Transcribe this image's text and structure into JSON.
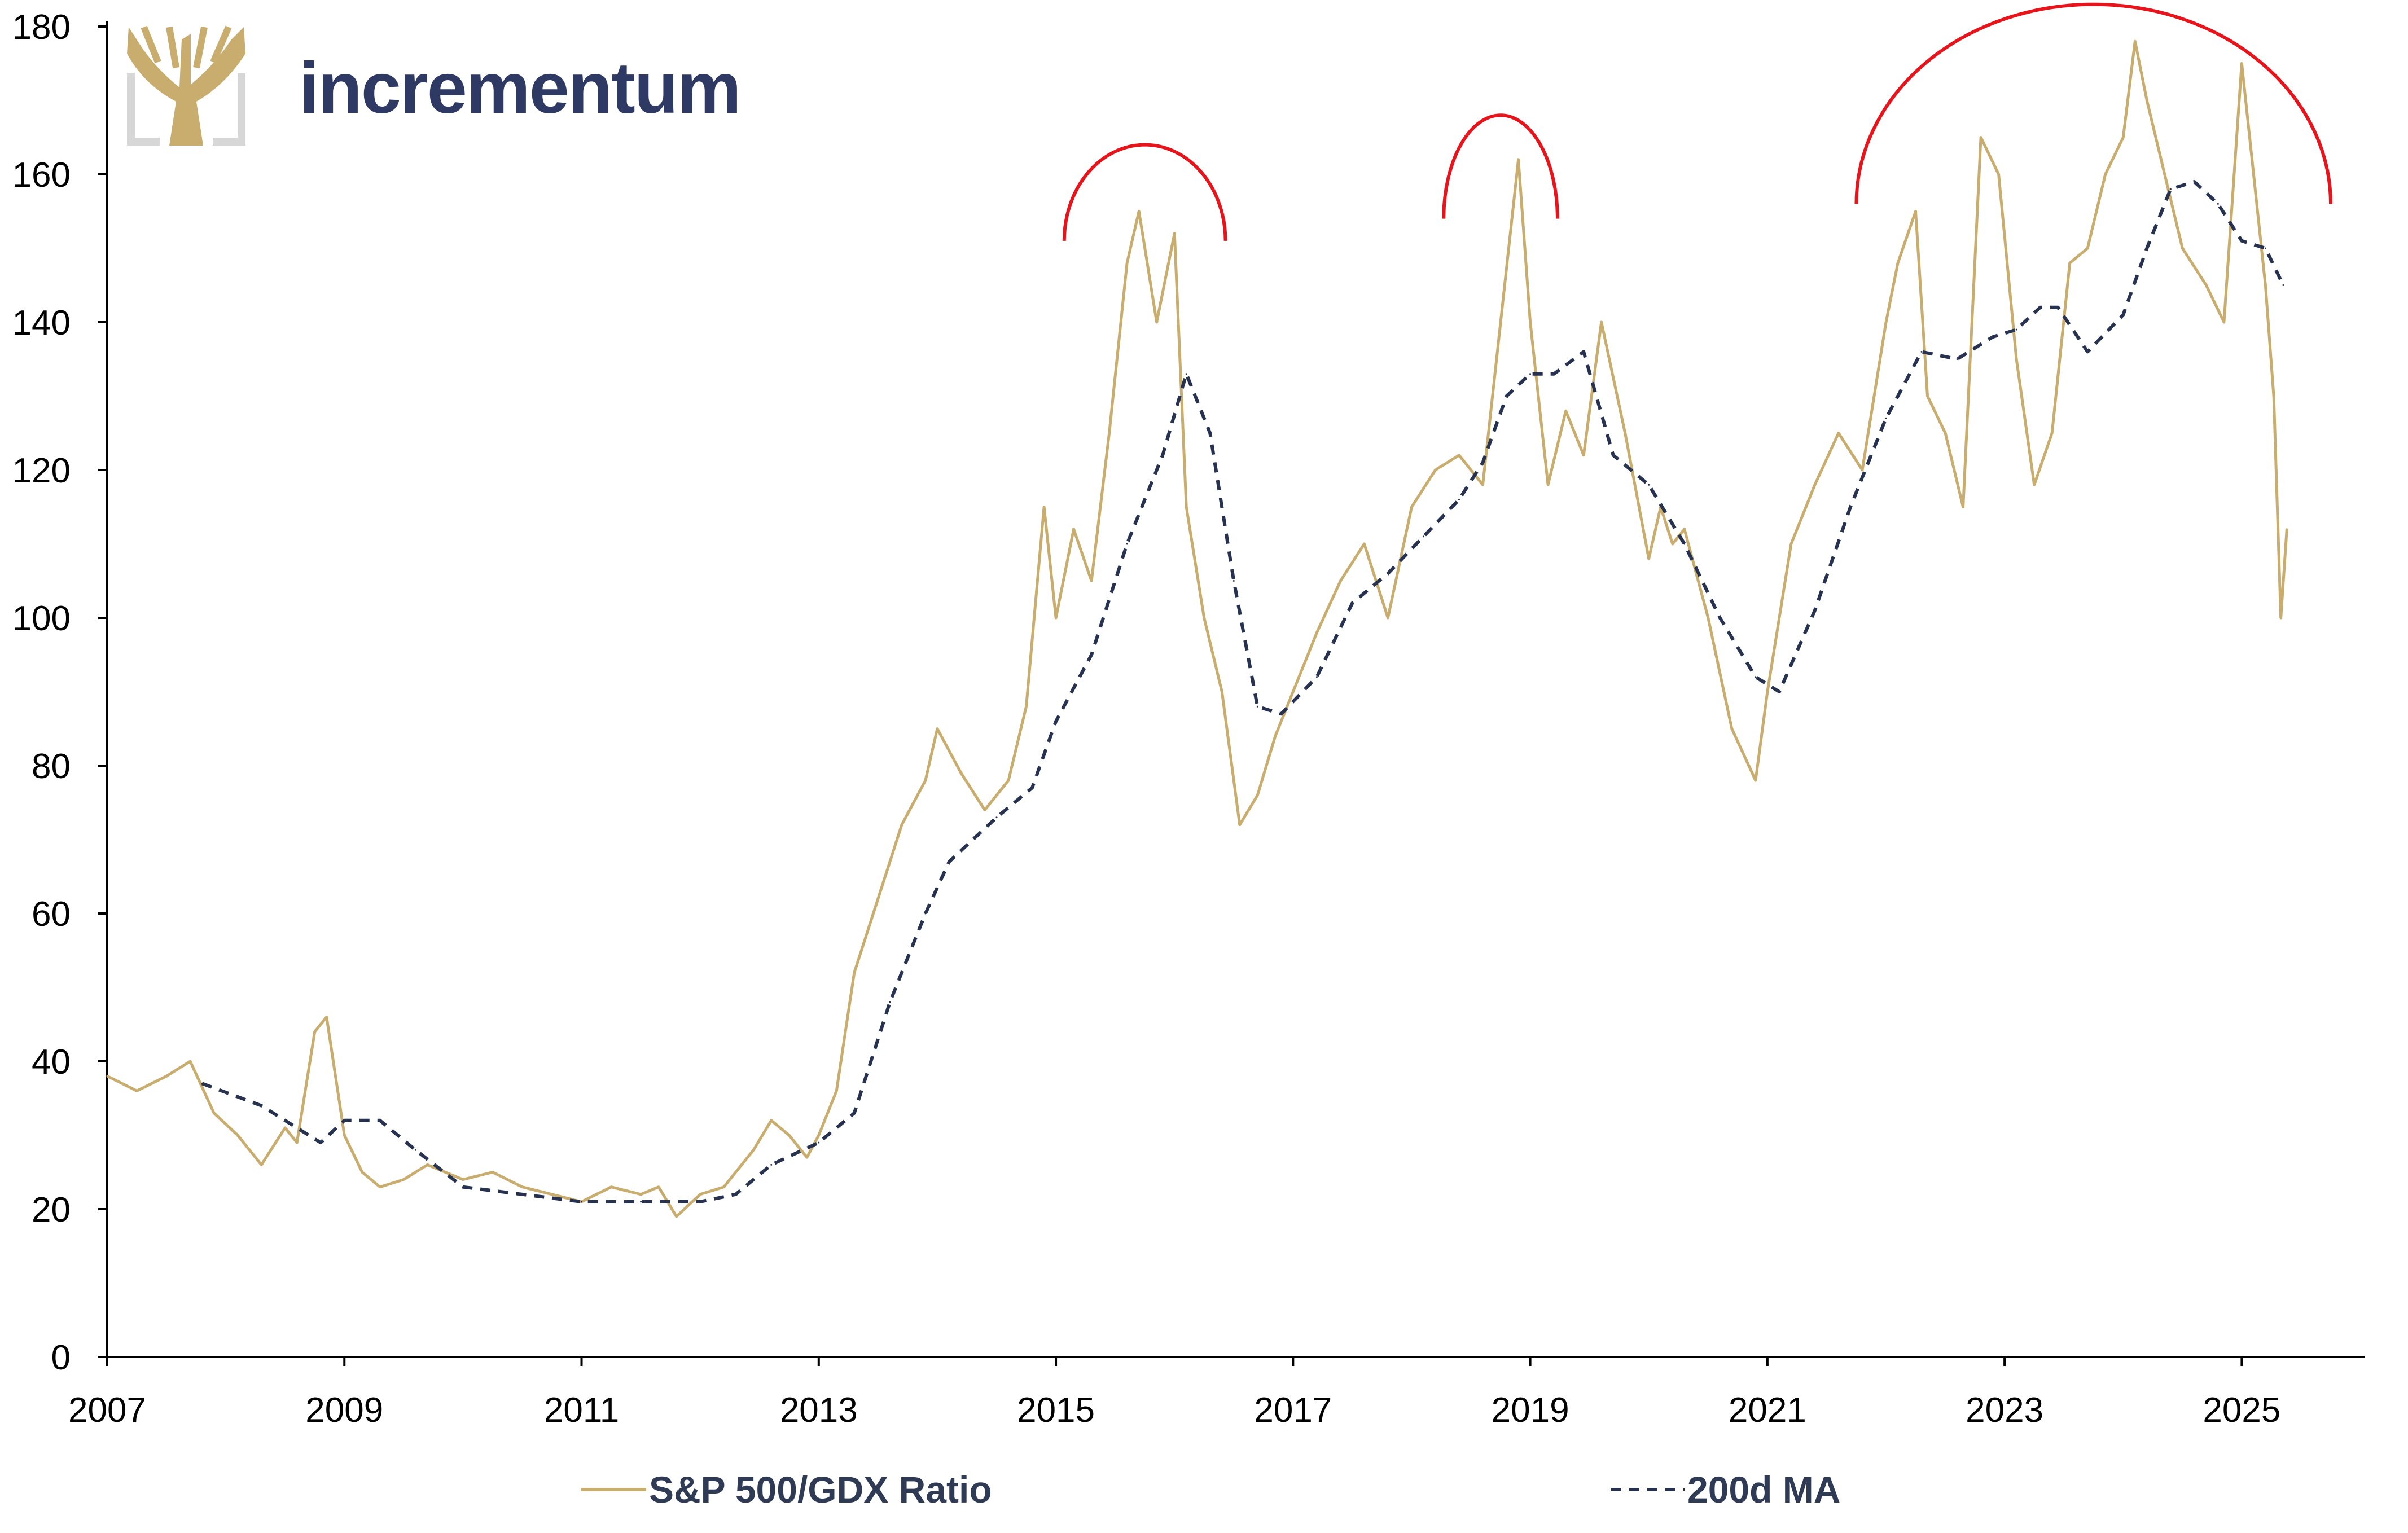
{
  "brand": {
    "name": "incrementum"
  },
  "colors": {
    "ratio": "#c9ad6e",
    "ma": "#26324f",
    "highlight": "#e8141b",
    "brand_text": "#2e3a63",
    "brand_gold": "#c9ad6e",
    "brand_gray": "#d7d7d7",
    "axis": "#000000"
  },
  "chart_data": {
    "type": "line",
    "title": "",
    "xlabel": "",
    "ylabel": "",
    "xlim": [
      2007,
      2025.75
    ],
    "ylim": [
      0,
      180
    ],
    "x_ticks": [
      "2007",
      "2009",
      "2011",
      "2013",
      "2015",
      "2017",
      "2019",
      "2021",
      "2023",
      "2025"
    ],
    "y_ticks": [
      "0",
      "20",
      "40",
      "60",
      "80",
      "100",
      "120",
      "140",
      "160",
      "180"
    ],
    "grid": false,
    "legend": {
      "position": "bottom",
      "entries": [
        "S&P 500/GDX Ratio",
        "200d MA"
      ]
    },
    "series": [
      {
        "name": "S&P 500/GDX Ratio",
        "style": "solid",
        "x": [
          2007.0,
          2007.25,
          2007.5,
          2007.7,
          2007.9,
          2008.1,
          2008.3,
          2008.5,
          2008.6,
          2008.75,
          2008.85,
          2009.0,
          2009.15,
          2009.3,
          2009.5,
          2009.7,
          2010.0,
          2010.25,
          2010.5,
          2010.75,
          2011.0,
          2011.25,
          2011.5,
          2011.65,
          2011.8,
          2012.0,
          2012.2,
          2012.45,
          2012.6,
          2012.75,
          2012.9,
          2013.0,
          2013.15,
          2013.3,
          2013.5,
          2013.7,
          2013.9,
          2014.0,
          2014.2,
          2014.4,
          2014.6,
          2014.75,
          2014.9,
          2015.0,
          2015.15,
          2015.3,
          2015.45,
          2015.6,
          2015.7,
          2015.85,
          2016.0,
          2016.1,
          2016.25,
          2016.4,
          2016.55,
          2016.7,
          2016.85,
          2017.0,
          2017.2,
          2017.4,
          2017.6,
          2017.8,
          2018.0,
          2018.2,
          2018.4,
          2018.6,
          2018.75,
          2018.9,
          2019.0,
          2019.15,
          2019.3,
          2019.45,
          2019.6,
          2019.8,
          2020.0,
          2020.1,
          2020.2,
          2020.3,
          2020.5,
          2020.7,
          2020.9,
          2021.0,
          2021.2,
          2021.4,
          2021.6,
          2021.8,
          2022.0,
          2022.1,
          2022.25,
          2022.35,
          2022.5,
          2022.65,
          2022.8,
          2022.95,
          2023.1,
          2023.25,
          2023.4,
          2023.55,
          2023.7,
          2023.85,
          2024.0,
          2024.1,
          2024.2,
          2024.35,
          2024.5,
          2024.7,
          2024.85,
          2025.0,
          2025.1,
          2025.2,
          2025.27,
          2025.33,
          2025.38
        ],
        "values": [
          38,
          36,
          38,
          40,
          33,
          30,
          26,
          31,
          29,
          44,
          46,
          30,
          25,
          23,
          24,
          26,
          24,
          25,
          23,
          22,
          21,
          23,
          22,
          23,
          19,
          22,
          23,
          28,
          32,
          30,
          27,
          30,
          36,
          52,
          62,
          72,
          78,
          85,
          79,
          74,
          78,
          88,
          115,
          100,
          112,
          105,
          125,
          148,
          155,
          140,
          152,
          115,
          100,
          90,
          72,
          76,
          84,
          90,
          98,
          105,
          110,
          100,
          115,
          120,
          122,
          118,
          140,
          162,
          140,
          118,
          128,
          122,
          140,
          125,
          108,
          115,
          110,
          112,
          100,
          85,
          78,
          90,
          110,
          118,
          125,
          120,
          140,
          148,
          155,
          130,
          125,
          115,
          165,
          160,
          135,
          118,
          125,
          148,
          150,
          160,
          165,
          178,
          170,
          160,
          150,
          145,
          140,
          175,
          160,
          145,
          130,
          100,
          112
        ]
      },
      {
        "name": "200d MA",
        "style": "dashed",
        "x": [
          2007.8,
          2008.3,
          2008.8,
          2009.0,
          2009.3,
          2009.6,
          2010.0,
          2010.5,
          2011.0,
          2011.5,
          2012.0,
          2012.3,
          2012.6,
          2013.0,
          2013.3,
          2013.6,
          2013.9,
          2014.1,
          2014.5,
          2014.8,
          2015.0,
          2015.3,
          2015.6,
          2015.9,
          2016.1,
          2016.3,
          2016.5,
          2016.7,
          2016.9,
          2017.2,
          2017.5,
          2017.8,
          2018.1,
          2018.4,
          2018.6,
          2018.8,
          2019.0,
          2019.2,
          2019.45,
          2019.7,
          2020.0,
          2020.3,
          2020.6,
          2020.9,
          2021.1,
          2021.4,
          2021.7,
          2022.0,
          2022.3,
          2022.6,
          2022.9,
          2023.1,
          2023.3,
          2023.45,
          2023.7,
          2024.0,
          2024.2,
          2024.4,
          2024.6,
          2024.8,
          2025.0,
          2025.2,
          2025.35
        ],
        "values": [
          37,
          34,
          29,
          32,
          32,
          28,
          23,
          22,
          21,
          21,
          21,
          22,
          26,
          29,
          33,
          48,
          60,
          67,
          73,
          77,
          86,
          95,
          110,
          122,
          133,
          125,
          105,
          88,
          87,
          92,
          102,
          106,
          111,
          116,
          121,
          130,
          133,
          133,
          136,
          122,
          118,
          110,
          100,
          92,
          90,
          101,
          115,
          127,
          136,
          135,
          138,
          139,
          142,
          142,
          136,
          141,
          150,
          158,
          159,
          156,
          151,
          150,
          145
        ]
      }
    ],
    "annotations": [
      {
        "type": "arc",
        "x_center": 2015.75,
        "x_radius": 0.68,
        "y_base": 151,
        "y_top": 164
      },
      {
        "type": "arc",
        "x_center": 2018.75,
        "x_radius": 0.48,
        "y_base": 154,
        "y_top": 168
      },
      {
        "type": "arc",
        "x_center": 2023.75,
        "x_radius": 2.0,
        "y_base": 156,
        "y_top": 183
      }
    ]
  }
}
